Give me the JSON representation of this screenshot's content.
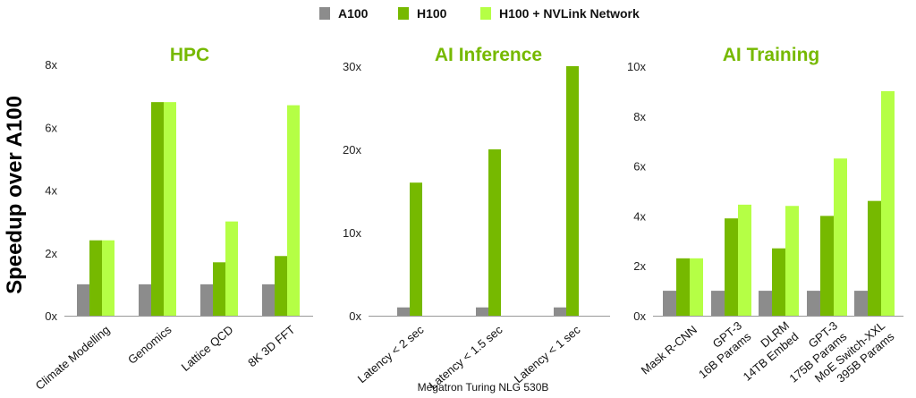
{
  "legend": [
    {
      "label": "A100",
      "color": "#8c8c8c"
    },
    {
      "label": "H100",
      "color": "#76b900"
    },
    {
      "label": "H100 + NVLink Network",
      "color": "#b5ff45"
    }
  ],
  "y_title": "Speedup over A100",
  "chart_data": [
    {
      "type": "bar",
      "title": "HPC",
      "ylabel": "Speedup over A100",
      "xlabel": "",
      "ylim": [
        0,
        8
      ],
      "yticks": [
        "0x",
        "2x",
        "4x",
        "6x",
        "8x"
      ],
      "categories": [
        [
          "Climate Modelling"
        ],
        [
          "Genomics"
        ],
        [
          "Lattice QCD"
        ],
        [
          "8K 3D FFT"
        ]
      ],
      "series": [
        {
          "name": "A100",
          "values": [
            1,
            1,
            1,
            1
          ]
        },
        {
          "name": "H100",
          "values": [
            2.4,
            6.8,
            1.7,
            1.9
          ]
        },
        {
          "name": "H100 + NVLink Network",
          "values": [
            2.4,
            6.8,
            3.0,
            6.7
          ]
        }
      ]
    },
    {
      "type": "bar",
      "title": "AI Inference",
      "xlabel": "Megatron Turing NLG 530B",
      "ylim": [
        0,
        30
      ],
      "yticks": [
        "0x",
        "10x",
        "20x",
        "30x"
      ],
      "categories": [
        [
          "Latency < 2 sec"
        ],
        [
          "Latency < 1.5 sec"
        ],
        [
          "Latency < 1 sec"
        ]
      ],
      "series": [
        {
          "name": "A100",
          "values": [
            1,
            1,
            1
          ]
        },
        {
          "name": "H100",
          "values": [
            16,
            20,
            30
          ]
        },
        {
          "name": "H100 + NVLink Network",
          "values": [
            null,
            null,
            null
          ]
        }
      ]
    },
    {
      "type": "bar",
      "title": "AI Training",
      "xlabel": "",
      "ylim": [
        0,
        10
      ],
      "yticks": [
        "0x",
        "2x",
        "4x",
        "6x",
        "8x",
        "10x"
      ],
      "categories": [
        [
          "Mask R-CNN"
        ],
        [
          "GPT-3",
          "16B Params"
        ],
        [
          "DLRM",
          "14TB Embed"
        ],
        [
          "GPT-3",
          "175B Params"
        ],
        [
          "MoE Switch-XXL",
          "395B Params"
        ]
      ],
      "series": [
        {
          "name": "A100",
          "values": [
            1,
            1,
            1,
            1,
            1
          ]
        },
        {
          "name": "H100",
          "values": [
            2.3,
            3.9,
            2.7,
            4.0,
            4.6
          ]
        },
        {
          "name": "H100 + NVLink Network",
          "values": [
            2.3,
            4.45,
            4.4,
            6.3,
            9.0
          ]
        }
      ]
    }
  ]
}
